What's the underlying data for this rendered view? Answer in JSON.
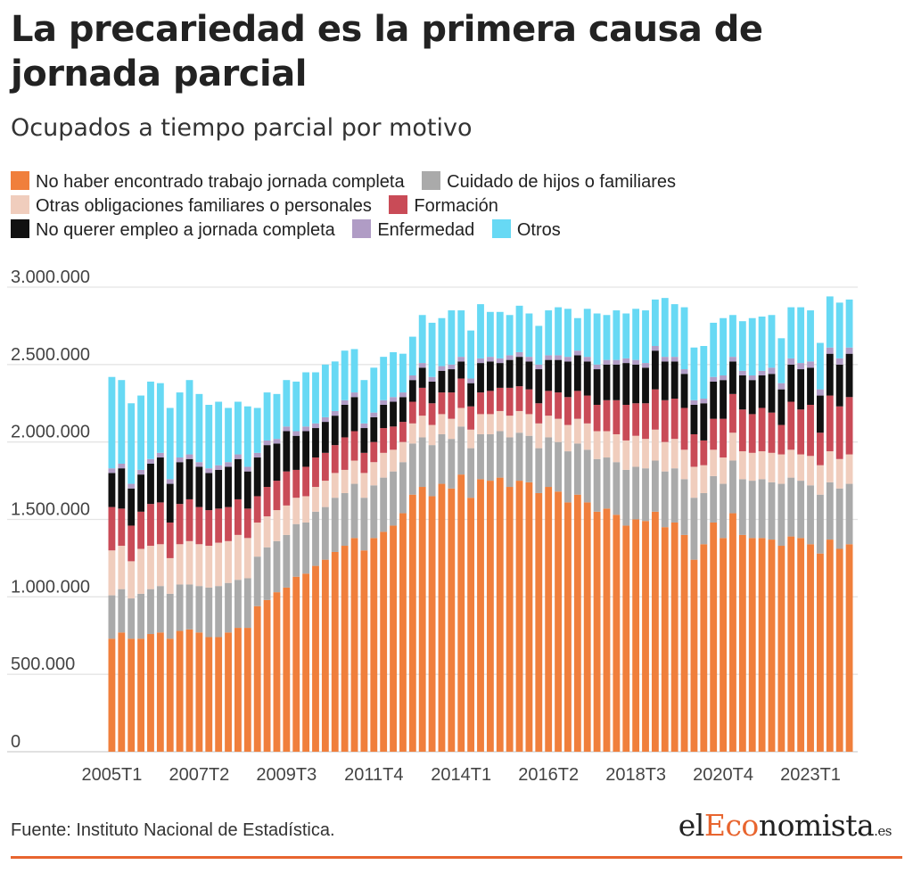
{
  "title": "La precariedad es la primera causa de jornada parcial",
  "subtitle": "Ocupados a tiempo parcial por motivo",
  "source": "Fuente: Instituto Nacional de Estadística.",
  "logo": {
    "prefix": "el",
    "accent": "Eco",
    "rest": "nomista",
    "tld": ".es"
  },
  "chart_data": {
    "type": "bar",
    "stacked": true,
    "legend_position": "top",
    "grid": true,
    "ylim": [
      0,
      3000000
    ],
    "yticks": [
      0,
      500000,
      1000000,
      1500000,
      2000000,
      2500000,
      3000000
    ],
    "ytick_labels": [
      "0",
      "500.000",
      "1.000.000",
      "1.500.000",
      "2.000.000",
      "2.500.000",
      "3.000.000"
    ],
    "x_tick_labels": [
      "2005T1",
      "2007T2",
      "2009T3",
      "2011T4",
      "2014T1",
      "2016T2",
      "2018T3",
      "2020T4",
      "2023T1"
    ],
    "x_tick_every": 9,
    "x_start": {
      "year": 2005,
      "quarter": 1
    },
    "series": [
      {
        "name": "No haber encontrado trabajo jornada completa",
        "color": "#f07f3c",
        "values": [
          730000,
          770000,
          730000,
          730000,
          760000,
          770000,
          730000,
          780000,
          790000,
          770000,
          740000,
          740000,
          770000,
          800000,
          800000,
          940000,
          980000,
          1030000,
          1060000,
          1130000,
          1150000,
          1200000,
          1240000,
          1290000,
          1330000,
          1380000,
          1300000,
          1380000,
          1420000,
          1460000,
          1540000,
          1660000,
          1710000,
          1650000,
          1730000,
          1700000,
          1790000,
          1640000,
          1760000,
          1750000,
          1770000,
          1710000,
          1750000,
          1740000,
          1670000,
          1710000,
          1680000,
          1610000,
          1660000,
          1610000,
          1550000,
          1570000,
          1530000,
          1460000,
          1500000,
          1490000,
          1550000,
          1450000,
          1480000,
          1400000,
          1240000,
          1340000,
          1480000,
          1380000,
          1540000,
          1400000,
          1380000,
          1380000,
          1370000,
          1330000,
          1390000,
          1380000,
          1340000,
          1280000,
          1370000,
          1310000,
          1340000
        ]
      },
      {
        "name": "Cuidado de hijos o familiares",
        "color": "#aaaaaa",
        "values": [
          280000,
          280000,
          260000,
          290000,
          290000,
          300000,
          290000,
          300000,
          290000,
          300000,
          320000,
          330000,
          320000,
          310000,
          320000,
          320000,
          340000,
          330000,
          340000,
          340000,
          330000,
          350000,
          340000,
          350000,
          340000,
          350000,
          340000,
          340000,
          350000,
          350000,
          330000,
          330000,
          320000,
          330000,
          320000,
          320000,
          310000,
          320000,
          290000,
          300000,
          300000,
          320000,
          310000,
          300000,
          290000,
          320000,
          320000,
          330000,
          330000,
          340000,
          340000,
          330000,
          340000,
          360000,
          340000,
          340000,
          330000,
          360000,
          350000,
          360000,
          400000,
          330000,
          300000,
          350000,
          340000,
          360000,
          370000,
          380000,
          370000,
          400000,
          380000,
          370000,
          380000,
          380000,
          370000,
          390000,
          390000
        ]
      },
      {
        "name": "Otras obligaciones familiares o personales",
        "color": "#f0cdbd",
        "values": [
          290000,
          280000,
          240000,
          290000,
          280000,
          270000,
          230000,
          260000,
          280000,
          270000,
          270000,
          280000,
          270000,
          290000,
          260000,
          220000,
          200000,
          200000,
          190000,
          170000,
          170000,
          160000,
          170000,
          160000,
          150000,
          150000,
          160000,
          150000,
          160000,
          140000,
          130000,
          130000,
          140000,
          130000,
          130000,
          130000,
          120000,
          120000,
          130000,
          130000,
          130000,
          140000,
          140000,
          140000,
          160000,
          140000,
          150000,
          170000,
          160000,
          170000,
          180000,
          170000,
          180000,
          190000,
          200000,
          190000,
          200000,
          190000,
          190000,
          190000,
          200000,
          180000,
          170000,
          170000,
          180000,
          180000,
          180000,
          180000,
          190000,
          190000,
          180000,
          170000,
          190000,
          190000,
          200000,
          190000,
          190000
        ]
      },
      {
        "name": "Formación",
        "color": "#c94b57",
        "values": [
          280000,
          240000,
          230000,
          240000,
          270000,
          270000,
          230000,
          260000,
          270000,
          240000,
          230000,
          220000,
          220000,
          230000,
          190000,
          170000,
          190000,
          190000,
          220000,
          180000,
          190000,
          190000,
          180000,
          180000,
          210000,
          190000,
          130000,
          130000,
          160000,
          150000,
          130000,
          140000,
          180000,
          140000,
          140000,
          170000,
          190000,
          150000,
          140000,
          150000,
          150000,
          180000,
          160000,
          160000,
          130000,
          160000,
          170000,
          180000,
          180000,
          180000,
          170000,
          200000,
          220000,
          230000,
          210000,
          230000,
          260000,
          270000,
          260000,
          270000,
          210000,
          160000,
          200000,
          250000,
          250000,
          270000,
          250000,
          280000,
          260000,
          190000,
          310000,
          290000,
          330000,
          210000,
          360000,
          340000,
          370000
        ]
      },
      {
        "name": "No querer empleo a jornada completa",
        "color": "#111111",
        "values": [
          220000,
          260000,
          240000,
          240000,
          260000,
          290000,
          250000,
          270000,
          260000,
          260000,
          240000,
          250000,
          260000,
          260000,
          240000,
          250000,
          270000,
          240000,
          260000,
          220000,
          230000,
          190000,
          200000,
          190000,
          210000,
          220000,
          160000,
          160000,
          150000,
          160000,
          160000,
          140000,
          130000,
          140000,
          140000,
          150000,
          110000,
          150000,
          190000,
          190000,
          160000,
          180000,
          190000,
          180000,
          220000,
          200000,
          210000,
          230000,
          230000,
          220000,
          230000,
          230000,
          230000,
          270000,
          250000,
          230000,
          250000,
          250000,
          240000,
          220000,
          190000,
          240000,
          240000,
          250000,
          210000,
          220000,
          220000,
          210000,
          250000,
          230000,
          240000,
          260000,
          240000,
          240000,
          270000,
          270000,
          280000
        ]
      },
      {
        "name": "Enfermedad",
        "color": "#b09cc5",
        "values": [
          30000,
          30000,
          30000,
          30000,
          30000,
          30000,
          30000,
          30000,
          30000,
          30000,
          30000,
          30000,
          30000,
          30000,
          30000,
          30000,
          30000,
          30000,
          30000,
          30000,
          30000,
          30000,
          30000,
          30000,
          30000,
          30000,
          30000,
          30000,
          30000,
          30000,
          30000,
          30000,
          30000,
          30000,
          30000,
          30000,
          30000,
          30000,
          30000,
          30000,
          30000,
          30000,
          30000,
          30000,
          30000,
          30000,
          30000,
          30000,
          30000,
          30000,
          30000,
          30000,
          30000,
          30000,
          30000,
          30000,
          30000,
          30000,
          30000,
          30000,
          30000,
          30000,
          30000,
          30000,
          30000,
          30000,
          30000,
          30000,
          40000,
          40000,
          40000,
          40000,
          40000,
          40000,
          40000,
          40000,
          40000
        ]
      },
      {
        "name": "Otros",
        "color": "#67d9f4",
        "values": [
          590000,
          540000,
          520000,
          480000,
          500000,
          450000,
          460000,
          420000,
          480000,
          440000,
          410000,
          410000,
          350000,
          340000,
          390000,
          290000,
          310000,
          290000,
          300000,
          320000,
          350000,
          330000,
          340000,
          320000,
          320000,
          280000,
          280000,
          290000,
          280000,
          290000,
          250000,
          250000,
          310000,
          350000,
          310000,
          350000,
          300000,
          310000,
          350000,
          290000,
          300000,
          260000,
          300000,
          280000,
          250000,
          290000,
          310000,
          310000,
          210000,
          310000,
          330000,
          290000,
          320000,
          290000,
          330000,
          340000,
          300000,
          380000,
          340000,
          400000,
          340000,
          340000,
          350000,
          370000,
          270000,
          320000,
          370000,
          350000,
          340000,
          290000,
          330000,
          360000,
          330000,
          300000,
          330000,
          360000,
          310000
        ]
      }
    ]
  }
}
